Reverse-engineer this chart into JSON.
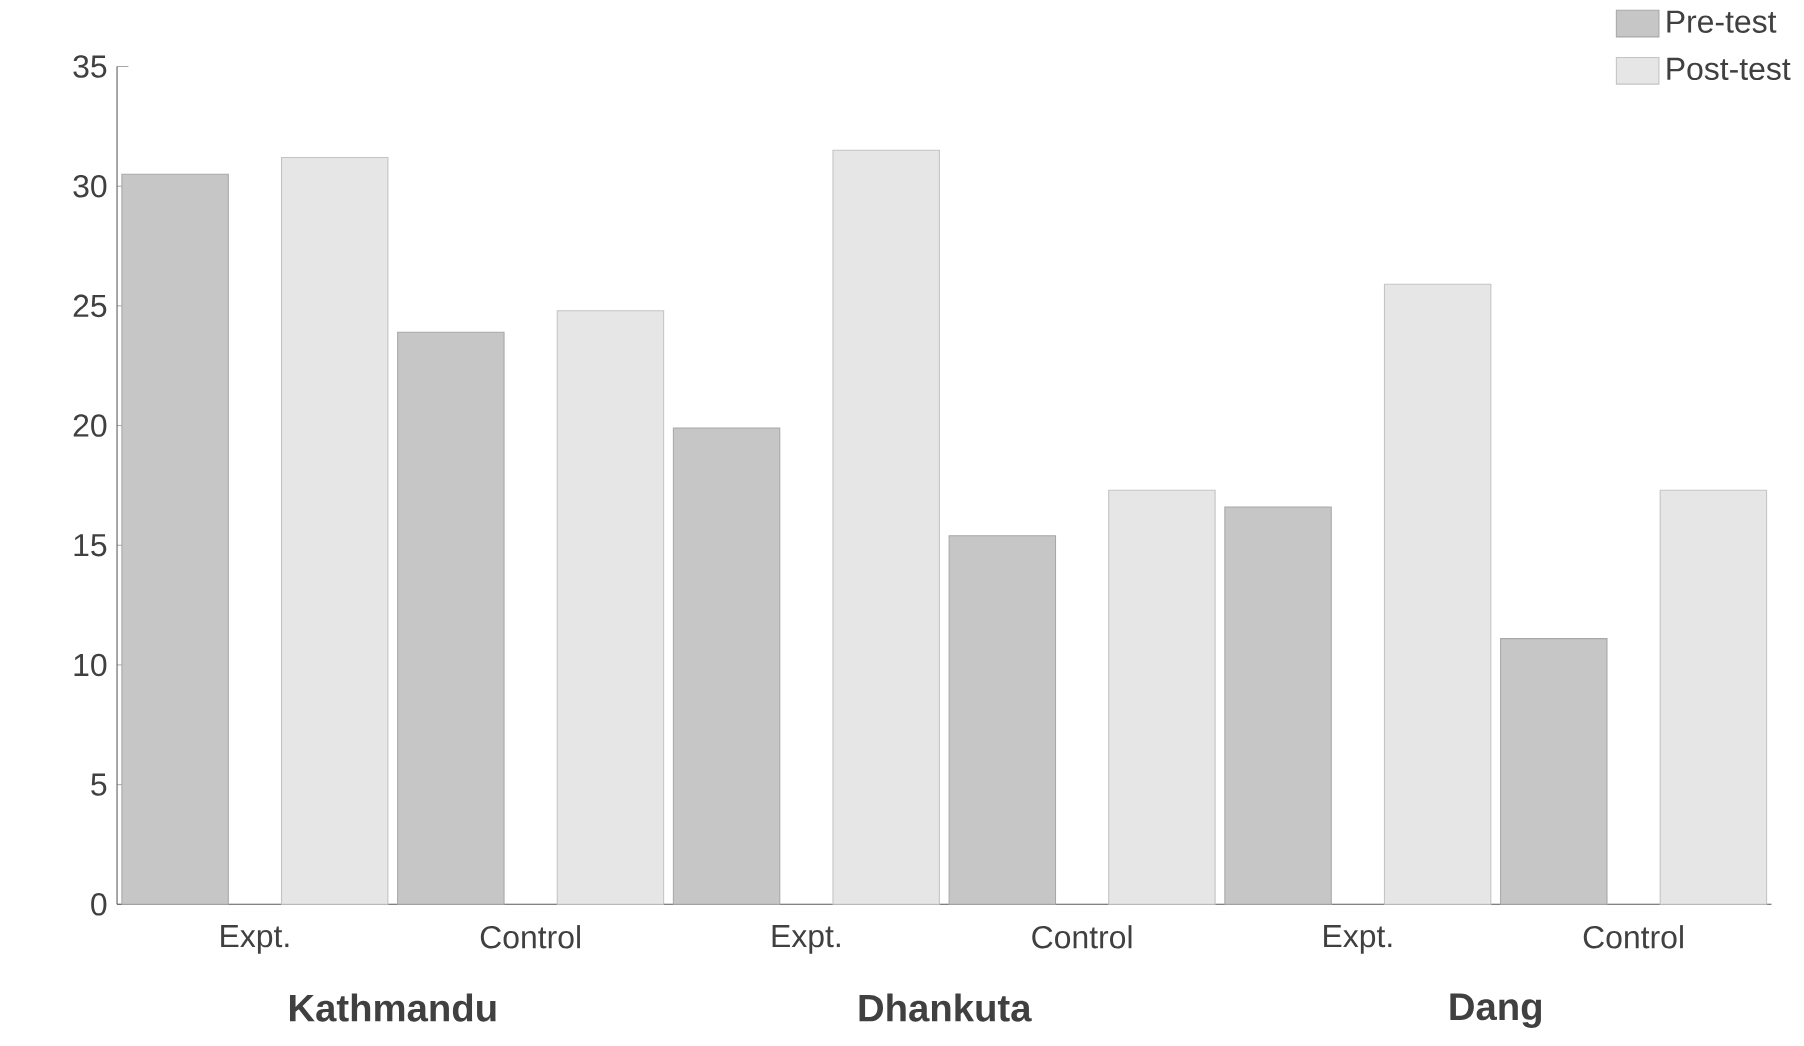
{
  "chart_data": {
    "type": "bar",
    "categories": [
      "Expt.",
      "Control",
      "Expt.",
      "Control",
      "Expt.",
      "Control"
    ],
    "series": [
      {
        "name": "Pre-test",
        "color": "#c6c6c6",
        "values": [
          30.5,
          23.9,
          19.9,
          15.4,
          16.6,
          11.1
        ]
      },
      {
        "name": "Post-test",
        "color": "#e6e6e6",
        "values": [
          31.2,
          24.8,
          31.5,
          17.3,
          25.9,
          17.3
        ]
      }
    ],
    "ylim": [
      0,
      35
    ],
    "yticks": [
      0,
      5,
      10,
      15,
      20,
      25,
      30,
      35
    ],
    "grid": false,
    "legend": "top right",
    "annotations": [
      "Kathmandu",
      "Dhankuta",
      "Dang"
    ]
  }
}
